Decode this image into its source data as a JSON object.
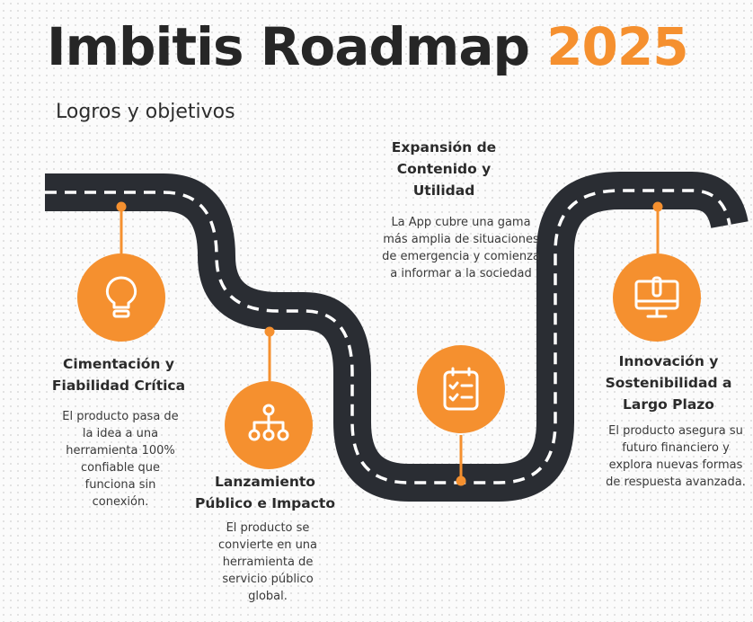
{
  "header": {
    "title": "Imbitis Roadmap",
    "year": "2025",
    "subtitle": "Logros y objetivos"
  },
  "colors": {
    "accent": "#f5902f",
    "road": "#2a2d33",
    "road_dash": "#ffffff",
    "text": "#2b2b2b"
  },
  "milestones": [
    {
      "icon": "lightbulb-icon",
      "title": "Cimentación y Fiabilidad Crítica",
      "description": "El producto pasa de la idea a una herramienta 100% confiable que funciona sin conexión."
    },
    {
      "icon": "network-hierarchy-icon",
      "title": "Lanzamiento Público e Impacto",
      "description": "El producto se convierte en una herramienta de servicio público global."
    },
    {
      "icon": "checklist-clipboard-icon",
      "title": "Expansión de Contenido y Utilidad",
      "description": "La App cubre una gama más amplia de situaciones de emergencia y comienza a informar a la sociedad"
    },
    {
      "icon": "computer-monitor-icon",
      "title": "Innovación y Sostenibilidad a Largo Plazo",
      "description": "El producto asegura su futuro financiero y explora nuevas formas de respuesta avanzada."
    }
  ]
}
